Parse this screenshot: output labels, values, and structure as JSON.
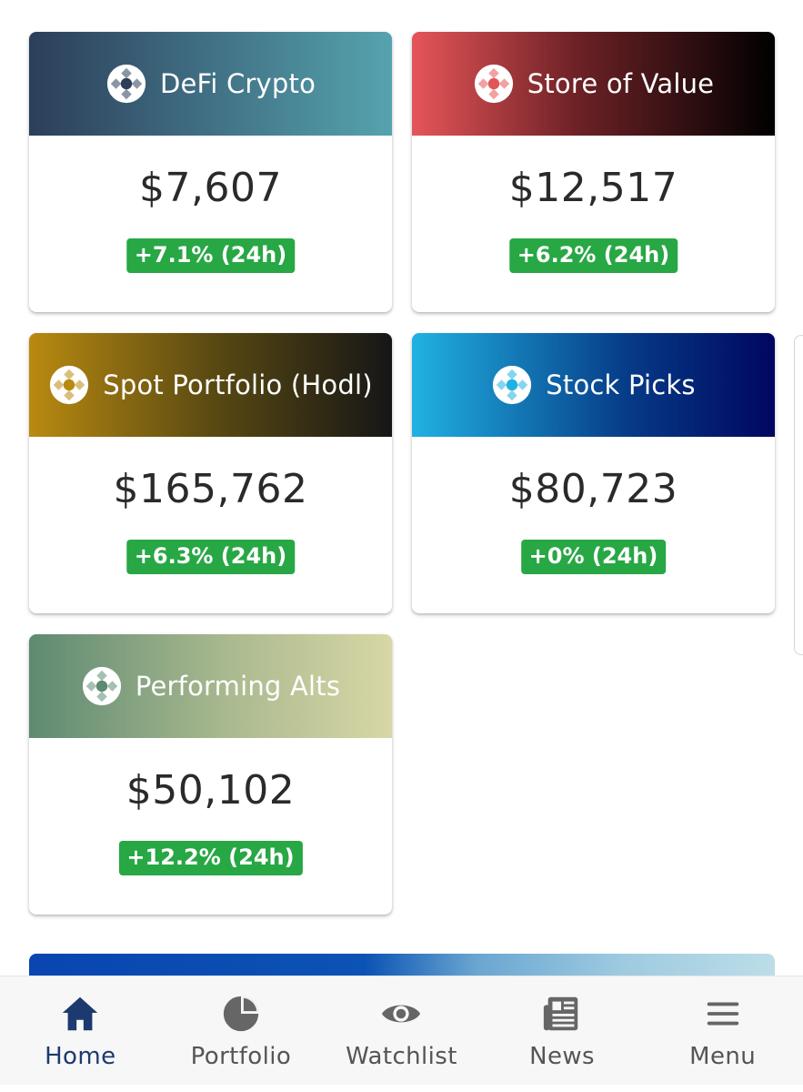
{
  "colors": {
    "change_badge": "#28a745",
    "nav_active": "#1c3a70",
    "nav_inactive": "#555555"
  },
  "cards": [
    {
      "title": "DeFi Crypto",
      "value": "$7,607",
      "change": "+7.1% (24h)",
      "icon": "portfolio-logo-icon",
      "icon_color": "#2c3e5a"
    },
    {
      "title": "Store of Value",
      "value": "$12,517",
      "change": "+6.2% (24h)",
      "icon": "portfolio-logo-icon",
      "icon_color": "#e55558"
    },
    {
      "title": "Spot Portfolio (Hodl)",
      "value": "$165,762",
      "change": "+6.3% (24h)",
      "icon": "portfolio-logo-icon",
      "icon_color": "#b98a10"
    },
    {
      "title": "Stock Picks",
      "value": "$80,723",
      "change": "+0% (24h)",
      "icon": "portfolio-logo-icon",
      "icon_color": "#20b2e2"
    },
    {
      "title": "Performing Alts",
      "value": "$50,102",
      "change": "+12.2% (24h)",
      "icon": "portfolio-logo-icon",
      "icon_color": "#5e8a72"
    }
  ],
  "nav": {
    "items": [
      {
        "label": "Home",
        "icon": "home-icon",
        "active": true
      },
      {
        "label": "Portfolio",
        "icon": "pie-chart-icon",
        "active": false
      },
      {
        "label": "Watchlist",
        "icon": "eye-icon",
        "active": false
      },
      {
        "label": "News",
        "icon": "newspaper-icon",
        "active": false
      },
      {
        "label": "Menu",
        "icon": "hamburger-menu-icon",
        "active": false
      }
    ]
  }
}
